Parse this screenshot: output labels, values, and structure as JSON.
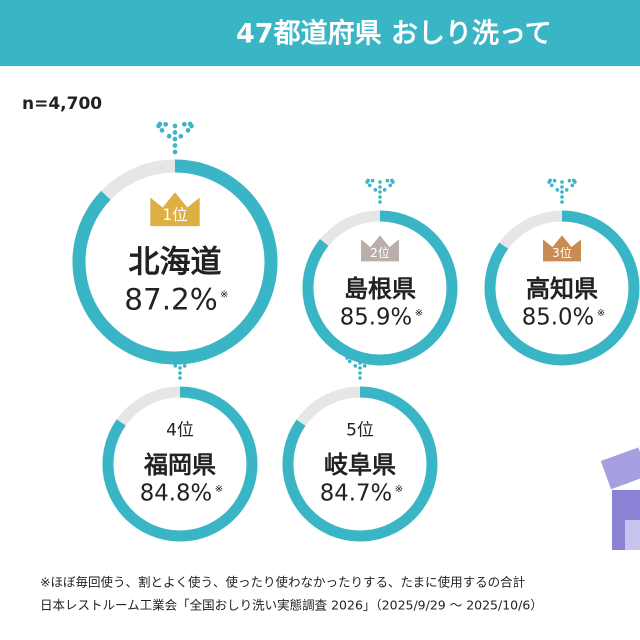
{
  "header": {
    "title": "47都道府県 おしり洗って"
  },
  "sample_size": "n=4,700",
  "chart_data": {
    "type": "ring",
    "ranks": [
      "1位",
      "2位",
      "3位",
      "4位",
      "5位"
    ],
    "categories": [
      "北海道",
      "島根県",
      "高知県",
      "福岡県",
      "岐阜県"
    ],
    "values": [
      87.2,
      85.9,
      85.0,
      84.8,
      84.7
    ],
    "value_labels": [
      "87.2%",
      "85.9%",
      "85.0%",
      "84.8%",
      "84.7%"
    ],
    "note_mark": "※",
    "ylim": [
      0,
      100
    ],
    "color": "#3ab5c6"
  },
  "notes": [
    "※ほぼ毎回使う、割とよく使う、使ったり使わなかったりする、たまに使用するの合計",
    "日本レストルーム工業会「全国おしり洗い実態調査 2026」（2025/9/29 ～ 2025/10/6）"
  ]
}
